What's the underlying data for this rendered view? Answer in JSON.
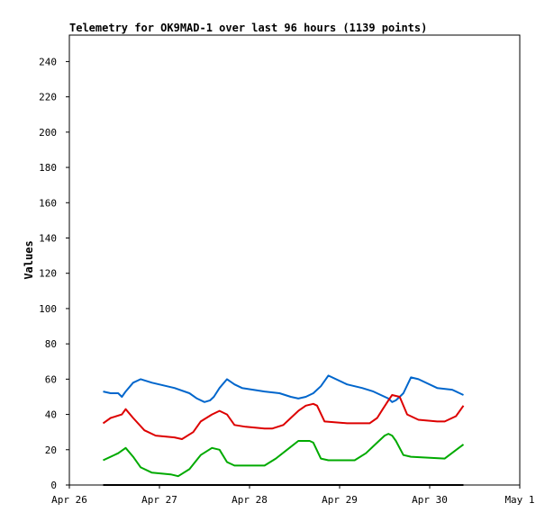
{
  "chart_data": {
    "type": "line",
    "title": "Telemetry for OK9MAD-1 over last 96 hours (1139 points)",
    "xlabel": "",
    "ylabel": "Values",
    "x_ticks": [
      "Apr 26",
      "Apr 27",
      "Apr 28",
      "Apr 29",
      "Apr 30",
      "May 1"
    ],
    "y_ticks": [
      0,
      20,
      40,
      60,
      80,
      100,
      120,
      140,
      160,
      180,
      200,
      220,
      240
    ],
    "xlim": [
      "2024-04-26 00:00",
      "2024-05-01 00:00"
    ],
    "ylim": [
      0,
      255
    ],
    "grid": false,
    "legend": "none",
    "series": [
      {
        "color": "#0066cc",
        "x": [
          "2024-04-26 09:00",
          "2024-04-26 11:00",
          "2024-04-26 13:00",
          "2024-04-26 14:00",
          "2024-04-26 15:00",
          "2024-04-26 17:00",
          "2024-04-26 19:00",
          "2024-04-26 22:00",
          "2024-04-27 04:00",
          "2024-04-27 08:00",
          "2024-04-27 10:00",
          "2024-04-27 12:00",
          "2024-04-27 13:30",
          "2024-04-27 14:30",
          "2024-04-27 16:00",
          "2024-04-27 18:00",
          "2024-04-27 20:00",
          "2024-04-27 22:00",
          "2024-04-28 04:00",
          "2024-04-28 08:00",
          "2024-04-28 11:00",
          "2024-04-28 13:00",
          "2024-04-28 15:00",
          "2024-04-28 17:00",
          "2024-04-28 19:00",
          "2024-04-28 21:00",
          "2024-04-29 02:00",
          "2024-04-29 06:00",
          "2024-04-29 09:00",
          "2024-04-29 11:00",
          "2024-04-29 13:00",
          "2024-04-29 14:00",
          "2024-04-29 15:00",
          "2024-04-29 16:00",
          "2024-04-29 17:00",
          "2024-04-29 19:00",
          "2024-04-29 21:00",
          "2024-04-30 02:00",
          "2024-04-30 06:00",
          "2024-04-30 08:00",
          "2024-04-30 09:00"
        ],
        "y": [
          53,
          52,
          52,
          50,
          53,
          58,
          60,
          58,
          55,
          52,
          49,
          47,
          48,
          50,
          55,
          60,
          57,
          55,
          53,
          52,
          50,
          49,
          50,
          52,
          56,
          62,
          57,
          55,
          53,
          51,
          49,
          47,
          48,
          50,
          52,
          61,
          60,
          55,
          54,
          52,
          51
        ]
      },
      {
        "color": "#dd0000",
        "x": [
          "2024-04-26 09:00",
          "2024-04-26 11:00",
          "2024-04-26 14:00",
          "2024-04-26 15:00",
          "2024-04-26 17:00",
          "2024-04-26 20:00",
          "2024-04-26 23:00",
          "2024-04-27 04:00",
          "2024-04-27 06:00",
          "2024-04-27 09:00",
          "2024-04-27 11:00",
          "2024-04-27 14:00",
          "2024-04-27 16:00",
          "2024-04-27 18:00",
          "2024-04-27 20:00",
          "2024-04-27 23:00",
          "2024-04-28 04:00",
          "2024-04-28 06:00",
          "2024-04-28 09:00",
          "2024-04-28 11:00",
          "2024-04-28 13:00",
          "2024-04-28 15:00",
          "2024-04-28 17:00",
          "2024-04-28 18:00",
          "2024-04-28 20:00",
          "2024-04-29 02:00",
          "2024-04-29 06:00",
          "2024-04-29 08:00",
          "2024-04-29 10:00",
          "2024-04-29 11:30",
          "2024-04-29 13:00",
          "2024-04-29 14:00",
          "2024-04-29 16:00",
          "2024-04-29 18:00",
          "2024-04-29 21:00",
          "2024-04-30 02:00",
          "2024-04-30 04:00",
          "2024-04-30 07:00",
          "2024-04-30 09:00"
        ],
        "y": [
          35,
          38,
          40,
          43,
          38,
          31,
          28,
          27,
          26,
          30,
          36,
          40,
          42,
          40,
          34,
          33,
          32,
          32,
          34,
          38,
          42,
          45,
          46,
          45,
          36,
          35,
          35,
          35,
          38,
          43,
          48,
          51,
          50,
          40,
          37,
          36,
          36,
          39,
          45
        ]
      },
      {
        "color": "#00aa00",
        "x": [
          "2024-04-26 09:00",
          "2024-04-26 13:00",
          "2024-04-26 15:00",
          "2024-04-26 17:00",
          "2024-04-26 19:00",
          "2024-04-26 22:00",
          "2024-04-27 03:00",
          "2024-04-27 05:00",
          "2024-04-27 08:00",
          "2024-04-27 11:00",
          "2024-04-27 14:00",
          "2024-04-27 16:00",
          "2024-04-27 18:00",
          "2024-04-27 20:00",
          "2024-04-28 04:00",
          "2024-04-28 07:00",
          "2024-04-28 10:00",
          "2024-04-28 13:00",
          "2024-04-28 16:00",
          "2024-04-28 17:00",
          "2024-04-28 19:00",
          "2024-04-28 21:00",
          "2024-04-29 04:00",
          "2024-04-29 07:00",
          "2024-04-29 10:00",
          "2024-04-29 12:00",
          "2024-04-29 13:00",
          "2024-04-29 14:00",
          "2024-04-29 15:00",
          "2024-04-29 17:00",
          "2024-04-29 19:00",
          "2024-04-30 04:00",
          "2024-04-30 09:00"
        ],
        "y": [
          14,
          18,
          21,
          16,
          10,
          7,
          6,
          5,
          9,
          17,
          21,
          20,
          13,
          11,
          11,
          15,
          20,
          25,
          25,
          24,
          15,
          14,
          14,
          18,
          24,
          28,
          29,
          28,
          25,
          17,
          16,
          15,
          23
        ]
      },
      {
        "color": "#000000",
        "x": [
          "2024-04-26 09:00",
          "2024-04-30 09:00"
        ],
        "y": [
          0,
          0
        ]
      }
    ]
  }
}
